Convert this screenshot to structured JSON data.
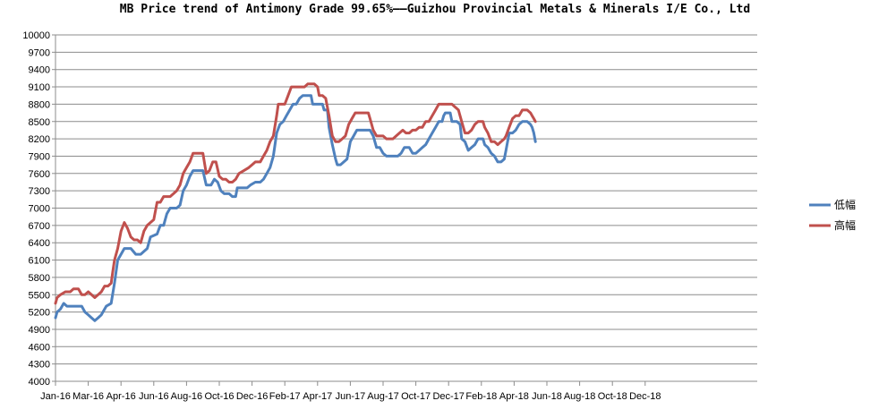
{
  "chart_data": {
    "type": "line",
    "title": "MB Price trend of Antimony Grade 99.65%——Guizhou Provincial Metals & Minerals I/E Co., Ltd",
    "xlabel": "",
    "ylabel": "",
    "ylim": [
      4000,
      10000
    ],
    "yticks": [
      4000,
      4300,
      4600,
      4900,
      5200,
      5500,
      5800,
      6100,
      6400,
      6700,
      7000,
      7300,
      7600,
      7900,
      8200,
      8500,
      8800,
      9100,
      9400,
      9700,
      10000
    ],
    "grid": true,
    "legend_position": "right",
    "categories": [
      "Jan-16",
      "Mar-16",
      "Apr-16",
      "Jun-16",
      "Aug-16",
      "Oct-16",
      "Dec-16",
      "Feb-17",
      "Apr-17",
      "Jun-17",
      "Aug-17",
      "Oct-17",
      "Dec-17",
      "Feb-18",
      "Apr-18",
      "Jun-18",
      "Aug-18",
      "Oct-18",
      "Dec-18"
    ],
    "series": [
      {
        "name": "低幅",
        "color": "#4f81bd",
        "points": [
          [
            0.0,
            5100
          ],
          [
            0.05,
            5200
          ],
          [
            0.15,
            5250
          ],
          [
            0.25,
            5350
          ],
          [
            0.35,
            5300
          ],
          [
            0.55,
            5300
          ],
          [
            0.8,
            5300
          ],
          [
            0.9,
            5200
          ],
          [
            1.0,
            5150
          ],
          [
            1.1,
            5100
          ],
          [
            1.2,
            5050
          ],
          [
            1.3,
            5100
          ],
          [
            1.4,
            5150
          ],
          [
            1.55,
            5300
          ],
          [
            1.7,
            5350
          ],
          [
            1.8,
            5700
          ],
          [
            1.9,
            6100
          ],
          [
            2.0,
            6200
          ],
          [
            2.1,
            6300
          ],
          [
            2.3,
            6300
          ],
          [
            2.45,
            6200
          ],
          [
            2.6,
            6200
          ],
          [
            2.7,
            6250
          ],
          [
            2.8,
            6300
          ],
          [
            2.9,
            6500
          ],
          [
            3.1,
            6550
          ],
          [
            3.2,
            6700
          ],
          [
            3.3,
            6700
          ],
          [
            3.4,
            6900
          ],
          [
            3.5,
            7000
          ],
          [
            3.7,
            7000
          ],
          [
            3.8,
            7050
          ],
          [
            3.9,
            7300
          ],
          [
            4.0,
            7400
          ],
          [
            4.1,
            7550
          ],
          [
            4.2,
            7650
          ],
          [
            4.4,
            7650
          ],
          [
            4.5,
            7650
          ],
          [
            4.6,
            7400
          ],
          [
            4.75,
            7400
          ],
          [
            4.85,
            7500
          ],
          [
            4.95,
            7450
          ],
          [
            5.05,
            7300
          ],
          [
            5.15,
            7250
          ],
          [
            5.3,
            7250
          ],
          [
            5.4,
            7200
          ],
          [
            5.5,
            7200
          ],
          [
            5.55,
            7350
          ],
          [
            5.7,
            7350
          ],
          [
            5.85,
            7350
          ],
          [
            5.95,
            7400
          ],
          [
            6.1,
            7450
          ],
          [
            6.25,
            7450
          ],
          [
            6.35,
            7500
          ],
          [
            6.45,
            7600
          ],
          [
            6.55,
            7700
          ],
          [
            6.65,
            7900
          ],
          [
            6.75,
            8300
          ],
          [
            6.85,
            8450
          ],
          [
            6.95,
            8500
          ],
          [
            7.05,
            8600
          ],
          [
            7.15,
            8700
          ],
          [
            7.25,
            8800
          ],
          [
            7.35,
            8800
          ],
          [
            7.45,
            8900
          ],
          [
            7.55,
            8950
          ],
          [
            7.7,
            8950
          ],
          [
            7.8,
            8950
          ],
          [
            7.85,
            8800
          ],
          [
            7.95,
            8800
          ],
          [
            8.15,
            8800
          ],
          [
            8.2,
            8700
          ],
          [
            8.3,
            8700
          ],
          [
            8.35,
            8400
          ],
          [
            8.45,
            8100
          ],
          [
            8.55,
            7850
          ],
          [
            8.6,
            7750
          ],
          [
            8.7,
            7750
          ],
          [
            8.8,
            7800
          ],
          [
            8.9,
            7850
          ],
          [
            9.0,
            8150
          ],
          [
            9.1,
            8250
          ],
          [
            9.2,
            8350
          ],
          [
            9.4,
            8350
          ],
          [
            9.5,
            8350
          ],
          [
            9.6,
            8350
          ],
          [
            9.7,
            8250
          ],
          [
            9.8,
            8050
          ],
          [
            9.9,
            8050
          ],
          [
            10.0,
            7950
          ],
          [
            10.1,
            7900
          ],
          [
            10.3,
            7900
          ],
          [
            10.45,
            7900
          ],
          [
            10.55,
            7950
          ],
          [
            10.65,
            8050
          ],
          [
            10.8,
            8050
          ],
          [
            10.9,
            7950
          ],
          [
            11.0,
            7950
          ],
          [
            11.1,
            8000
          ],
          [
            11.2,
            8050
          ],
          [
            11.3,
            8100
          ],
          [
            11.4,
            8200
          ],
          [
            11.5,
            8300
          ],
          [
            11.6,
            8400
          ],
          [
            11.7,
            8500
          ],
          [
            11.8,
            8500
          ],
          [
            11.85,
            8600
          ],
          [
            11.9,
            8650
          ],
          [
            12.05,
            8650
          ],
          [
            12.1,
            8500
          ],
          [
            12.25,
            8500
          ],
          [
            12.35,
            8450
          ],
          [
            12.4,
            8200
          ],
          [
            12.5,
            8150
          ],
          [
            12.6,
            8000
          ],
          [
            12.7,
            8050
          ],
          [
            12.8,
            8100
          ],
          [
            12.9,
            8200
          ],
          [
            13.05,
            8200
          ],
          [
            13.1,
            8100
          ],
          [
            13.2,
            8050
          ],
          [
            13.3,
            7950
          ],
          [
            13.4,
            7900
          ],
          [
            13.5,
            7800
          ],
          [
            13.6,
            7800
          ],
          [
            13.7,
            7850
          ],
          [
            13.75,
            8000
          ],
          [
            13.85,
            8300
          ],
          [
            13.95,
            8300
          ],
          [
            14.05,
            8350
          ],
          [
            14.15,
            8450
          ],
          [
            14.25,
            8500
          ],
          [
            14.4,
            8500
          ],
          [
            14.5,
            8450
          ],
          [
            14.55,
            8400
          ],
          [
            14.6,
            8300
          ],
          [
            14.65,
            8150
          ]
        ]
      },
      {
        "name": "高幅",
        "color": "#c0504d",
        "points": [
          [
            0.0,
            5350
          ],
          [
            0.05,
            5450
          ],
          [
            0.15,
            5500
          ],
          [
            0.3,
            5550
          ],
          [
            0.45,
            5550
          ],
          [
            0.55,
            5600
          ],
          [
            0.7,
            5600
          ],
          [
            0.8,
            5500
          ],
          [
            0.9,
            5500
          ],
          [
            1.0,
            5550
          ],
          [
            1.1,
            5500
          ],
          [
            1.2,
            5450
          ],
          [
            1.3,
            5500
          ],
          [
            1.4,
            5550
          ],
          [
            1.5,
            5650
          ],
          [
            1.6,
            5650
          ],
          [
            1.7,
            5700
          ],
          [
            1.75,
            5900
          ],
          [
            1.8,
            6100
          ],
          [
            1.9,
            6300
          ],
          [
            2.0,
            6600
          ],
          [
            2.1,
            6750
          ],
          [
            2.2,
            6650
          ],
          [
            2.3,
            6500
          ],
          [
            2.4,
            6450
          ],
          [
            2.5,
            6450
          ],
          [
            2.6,
            6400
          ],
          [
            2.7,
            6600
          ],
          [
            2.8,
            6700
          ],
          [
            2.9,
            6750
          ],
          [
            3.0,
            6800
          ],
          [
            3.1,
            7100
          ],
          [
            3.2,
            7100
          ],
          [
            3.3,
            7200
          ],
          [
            3.4,
            7200
          ],
          [
            3.5,
            7200
          ],
          [
            3.6,
            7250
          ],
          [
            3.7,
            7300
          ],
          [
            3.8,
            7400
          ],
          [
            3.9,
            7600
          ],
          [
            4.0,
            7700
          ],
          [
            4.1,
            7800
          ],
          [
            4.2,
            7950
          ],
          [
            4.4,
            7950
          ],
          [
            4.5,
            7950
          ],
          [
            4.6,
            7600
          ],
          [
            4.7,
            7650
          ],
          [
            4.8,
            7800
          ],
          [
            4.9,
            7800
          ],
          [
            5.0,
            7550
          ],
          [
            5.1,
            7500
          ],
          [
            5.2,
            7500
          ],
          [
            5.3,
            7450
          ],
          [
            5.4,
            7450
          ],
          [
            5.5,
            7500
          ],
          [
            5.6,
            7600
          ],
          [
            5.75,
            7650
          ],
          [
            5.9,
            7700
          ],
          [
            6.0,
            7750
          ],
          [
            6.1,
            7800
          ],
          [
            6.25,
            7800
          ],
          [
            6.35,
            7900
          ],
          [
            6.45,
            8000
          ],
          [
            6.55,
            8150
          ],
          [
            6.65,
            8250
          ],
          [
            6.75,
            8600
          ],
          [
            6.8,
            8800
          ],
          [
            6.9,
            8800
          ],
          [
            7.0,
            8800
          ],
          [
            7.1,
            8950
          ],
          [
            7.2,
            9100
          ],
          [
            7.4,
            9100
          ],
          [
            7.5,
            9100
          ],
          [
            7.6,
            9100
          ],
          [
            7.7,
            9150
          ],
          [
            7.9,
            9150
          ],
          [
            8.0,
            9100
          ],
          [
            8.05,
            8950
          ],
          [
            8.15,
            8950
          ],
          [
            8.25,
            8900
          ],
          [
            8.35,
            8600
          ],
          [
            8.45,
            8250
          ],
          [
            8.55,
            8150
          ],
          [
            8.65,
            8150
          ],
          [
            8.75,
            8200
          ],
          [
            8.85,
            8250
          ],
          [
            8.95,
            8450
          ],
          [
            9.05,
            8550
          ],
          [
            9.15,
            8650
          ],
          [
            9.3,
            8650
          ],
          [
            9.45,
            8650
          ],
          [
            9.55,
            8650
          ],
          [
            9.6,
            8550
          ],
          [
            9.7,
            8350
          ],
          [
            9.8,
            8250
          ],
          [
            9.9,
            8250
          ],
          [
            10.0,
            8250
          ],
          [
            10.1,
            8200
          ],
          [
            10.3,
            8200
          ],
          [
            10.4,
            8250
          ],
          [
            10.5,
            8300
          ],
          [
            10.6,
            8350
          ],
          [
            10.7,
            8300
          ],
          [
            10.8,
            8300
          ],
          [
            10.9,
            8350
          ],
          [
            11.0,
            8350
          ],
          [
            11.1,
            8400
          ],
          [
            11.2,
            8400
          ],
          [
            11.3,
            8500
          ],
          [
            11.4,
            8500
          ],
          [
            11.5,
            8600
          ],
          [
            11.6,
            8700
          ],
          [
            11.7,
            8800
          ],
          [
            11.85,
            8800
          ],
          [
            11.95,
            8800
          ],
          [
            12.1,
            8800
          ],
          [
            12.2,
            8750
          ],
          [
            12.3,
            8700
          ],
          [
            12.4,
            8500
          ],
          [
            12.5,
            8300
          ],
          [
            12.6,
            8300
          ],
          [
            12.7,
            8350
          ],
          [
            12.8,
            8450
          ],
          [
            12.9,
            8500
          ],
          [
            13.05,
            8500
          ],
          [
            13.1,
            8400
          ],
          [
            13.2,
            8300
          ],
          [
            13.3,
            8150
          ],
          [
            13.4,
            8150
          ],
          [
            13.5,
            8100
          ],
          [
            13.6,
            8150
          ],
          [
            13.7,
            8200
          ],
          [
            13.75,
            8250
          ],
          [
            13.85,
            8400
          ],
          [
            13.95,
            8550
          ],
          [
            14.05,
            8600
          ],
          [
            14.15,
            8600
          ],
          [
            14.25,
            8700
          ],
          [
            14.4,
            8700
          ],
          [
            14.5,
            8650
          ],
          [
            14.55,
            8600
          ],
          [
            14.6,
            8550
          ],
          [
            14.65,
            8500
          ]
        ]
      }
    ]
  }
}
